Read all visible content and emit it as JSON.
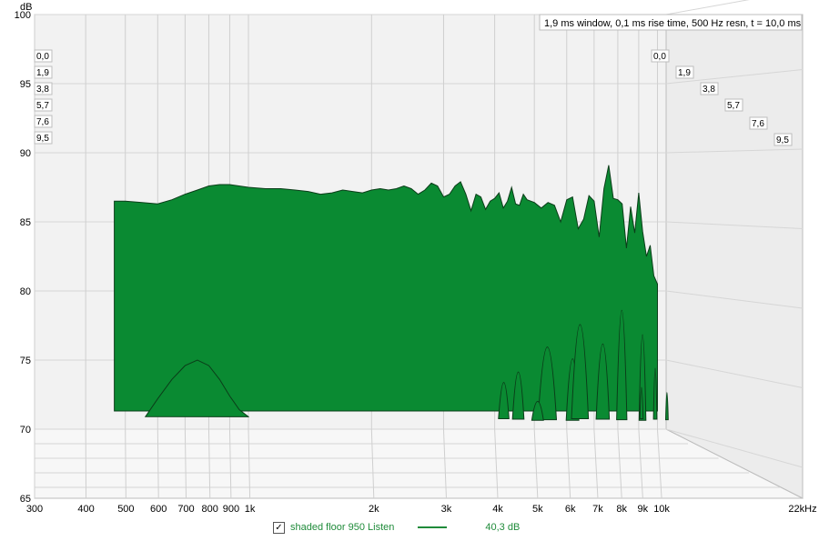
{
  "chart_data": {
    "type": "area",
    "title": "1,9 ms window, 0,1 ms rise time,  500 Hz resn, t = 10,0 ms",
    "ylabel": "dB",
    "ylim": [
      65,
      100
    ],
    "yticks": [
      "100",
      "95",
      "90",
      "85",
      "80",
      "75",
      "70",
      "65"
    ],
    "xscale": "log",
    "xlim": [
      300,
      22000
    ],
    "xticks": [
      {
        "v": 300,
        "label": "300"
      },
      {
        "v": 400,
        "label": "400"
      },
      {
        "v": 500,
        "label": "500"
      },
      {
        "v": 600,
        "label": "600"
      },
      {
        "v": 700,
        "label": "700"
      },
      {
        "v": 800,
        "label": "800"
      },
      {
        "v": 900,
        "label": "900"
      },
      {
        "v": 1000,
        "label": "1k"
      },
      {
        "v": 2000,
        "label": "2k"
      },
      {
        "v": 3000,
        "label": "3k"
      },
      {
        "v": 4000,
        "label": "4k"
      },
      {
        "v": 5000,
        "label": "5k"
      },
      {
        "v": 6000,
        "label": "6k"
      },
      {
        "v": 7000,
        "label": "7k"
      },
      {
        "v": 8000,
        "label": "8k"
      },
      {
        "v": 9000,
        "label": "9k"
      },
      {
        "v": 10000,
        "label": "10k"
      },
      {
        "v": 22000,
        "label": "22kHz"
      }
    ],
    "time_slices_ms": [
      "0,0",
      "1,9",
      "3,8",
      "5,7",
      "7,6",
      "9,5"
    ],
    "fill_color": "#0a8a32",
    "series": [
      {
        "name": "shaded floor 950 Listen",
        "slice": "0,0",
        "x": [
          470,
          500,
          550,
          600,
          650,
          700,
          750,
          800,
          850,
          900,
          1000,
          1100,
          1200,
          1300,
          1400,
          1500,
          1600,
          1700,
          1800,
          1900,
          2000,
          2100,
          2200,
          2300,
          2400,
          2500,
          2600,
          2700,
          2800,
          2900,
          3000,
          3100,
          3200,
          3300,
          3400,
          3500,
          3600,
          3700,
          3800,
          3900,
          4000,
          4100,
          4200,
          4300,
          4400,
          4500,
          4600,
          4700,
          4800,
          5000,
          5200,
          5400,
          5600,
          5800,
          6000,
          6200,
          6400,
          6600,
          6800,
          7000,
          7200,
          7400,
          7600,
          7800,
          8000,
          8200,
          8400,
          8600,
          8800,
          9000,
          9200,
          9400,
          9600,
          9800,
          10000
        ],
        "y": [
          86.5,
          86.5,
          86.4,
          86.3,
          86.6,
          87.0,
          87.3,
          87.6,
          87.7,
          87.7,
          87.5,
          87.4,
          87.4,
          87.3,
          87.2,
          87.0,
          87.1,
          87.3,
          87.2,
          87.1,
          87.3,
          87.4,
          87.3,
          87.4,
          87.6,
          87.4,
          87.0,
          87.3,
          87.8,
          87.6,
          86.8,
          87.0,
          87.6,
          87.9,
          87.0,
          85.8,
          87.0,
          86.8,
          85.9,
          86.5,
          86.7,
          87.1,
          86.0,
          86.5,
          87.5,
          86.3,
          86.2,
          87.0,
          86.6,
          86.4,
          86.0,
          86.4,
          86.2,
          85.0,
          86.6,
          86.8,
          84.5,
          85.2,
          86.9,
          86.5,
          83.9,
          87.4,
          89.1,
          86.7,
          86.6,
          86.3,
          83.1,
          86.1,
          84.2,
          87.1,
          84.3,
          82.5,
          83.3,
          81.1,
          80.5
        ]
      }
    ],
    "valleys": [
      {
        "name": "low-frequency floor bump",
        "x": [
          560,
          600,
          650,
          700,
          750,
          800,
          850,
          900,
          950,
          1000
        ],
        "y": [
          70.9,
          72.2,
          73.6,
          74.6,
          75.0,
          74.6,
          73.6,
          72.4,
          71.4,
          70.9
        ]
      }
    ]
  },
  "legend": {
    "checked_glyph": "✓",
    "label": "shaded floor 950 Listen",
    "value": "40,3 dB",
    "color": "#1f8b3a"
  }
}
